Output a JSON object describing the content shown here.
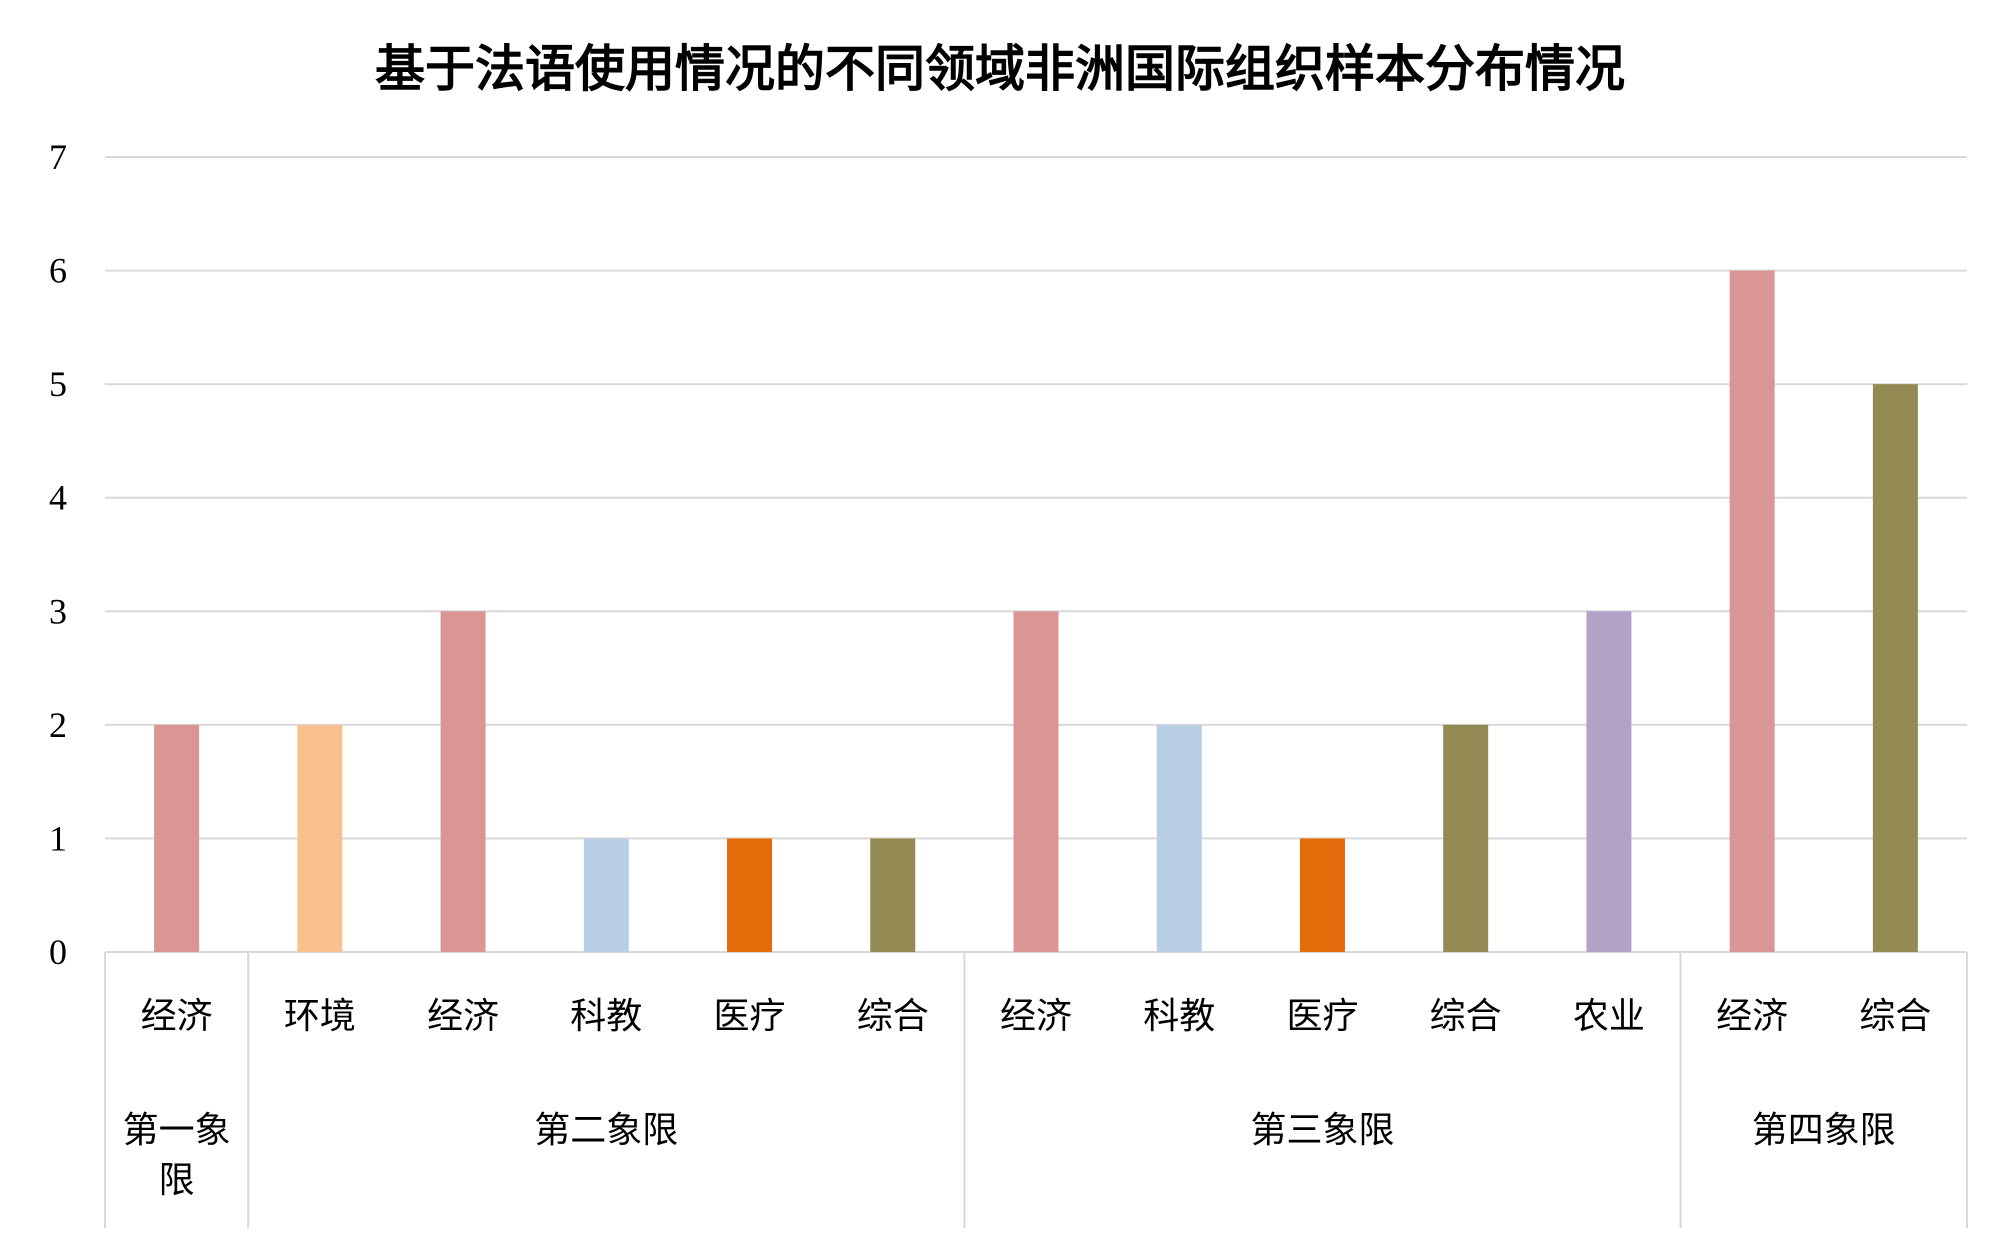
{
  "chart_data": {
    "type": "bar",
    "title": "基于法语使用情况的不同领域非洲国际组织样本分布情况",
    "xlabel": "",
    "ylabel": "",
    "ylim": [
      0,
      7
    ],
    "yticks": [
      "0",
      "1",
      "2",
      "3",
      "4",
      "5",
      "6",
      "7"
    ],
    "grid": true,
    "legend": "none",
    "groups": [
      {
        "label": "第一象限",
        "categories": [
          {
            "label": "经济",
            "value": 2,
            "color": "#d99694"
          }
        ]
      },
      {
        "label": "第二象限",
        "categories": [
          {
            "label": "环境",
            "value": 2,
            "color": "#fac090"
          },
          {
            "label": "经济",
            "value": 3,
            "color": "#d99694"
          },
          {
            "label": "科教",
            "value": 1,
            "color": "#b9cde5"
          },
          {
            "label": "医疗",
            "value": 1,
            "color": "#e46c0a"
          },
          {
            "label": "综合",
            "value": 1,
            "color": "#948a54"
          }
        ]
      },
      {
        "label": "第三象限",
        "categories": [
          {
            "label": "经济",
            "value": 3,
            "color": "#d99694"
          },
          {
            "label": "科教",
            "value": 2,
            "color": "#b9cde5"
          },
          {
            "label": "医疗",
            "value": 1,
            "color": "#e46c0a"
          },
          {
            "label": "综合",
            "value": 2,
            "color": "#948a54"
          },
          {
            "label": "农业",
            "value": 3,
            "color": "#b3a2c7"
          }
        ]
      },
      {
        "label": "第四象限",
        "categories": [
          {
            "label": "经济",
            "value": 6,
            "color": "#d99694"
          },
          {
            "label": "综合",
            "value": 5,
            "color": "#948a54"
          }
        ]
      }
    ]
  }
}
